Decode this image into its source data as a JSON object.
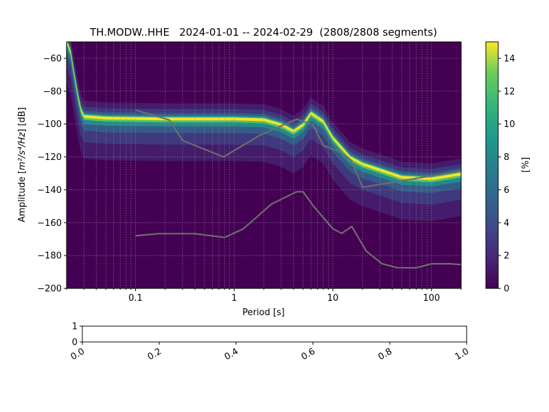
{
  "chart_data": [
    {
      "type": "heatmap",
      "title": "TH.MODW..HHE   2024-01-01 -- 2024-02-29  (2808/2808 segments)",
      "xlabel": "Period [s]",
      "ylabel_main": "Amplitude [",
      "ylabel_unit": "m²/s⁴/Hz",
      "ylabel_end": "] [dB]",
      "xscale": "log",
      "xlim": [
        0.02,
        200
      ],
      "ylim": [
        -200,
        -50
      ],
      "xticks": [
        0.1,
        1,
        10,
        100
      ],
      "xtick_labels": [
        "0.1",
        "1",
        "10",
        "100"
      ],
      "yticks": [
        -200,
        -180,
        -160,
        -140,
        -120,
        -100,
        -80,
        -60
      ],
      "ytick_labels": [
        "−200",
        "−180",
        "−160",
        "−140",
        "−120",
        "−100",
        "−80",
        "−60"
      ],
      "grid": true,
      "colorbar": {
        "label": "[%]",
        "range": [
          0,
          15
        ],
        "ticks": [
          0,
          2,
          4,
          6,
          8,
          10,
          12,
          14
        ],
        "tick_labels": [
          "0",
          "2",
          "4",
          "6",
          "8",
          "10",
          "12",
          "14"
        ],
        "colormap": "viridis"
      },
      "mode_ridge": [
        {
          "x": 0.02,
          "y": -49
        },
        {
          "x": 0.022,
          "y": -56
        },
        {
          "x": 0.024,
          "y": -70
        },
        {
          "x": 0.026,
          "y": -82
        },
        {
          "x": 0.028,
          "y": -91
        },
        {
          "x": 0.03,
          "y": -95
        },
        {
          "x": 0.05,
          "y": -96
        },
        {
          "x": 0.2,
          "y": -96.5
        },
        {
          "x": 0.5,
          "y": -96.5
        },
        {
          "x": 1,
          "y": -96.5
        },
        {
          "x": 2,
          "y": -97
        },
        {
          "x": 3,
          "y": -100
        },
        {
          "x": 4,
          "y": -104
        },
        {
          "x": 5,
          "y": -100
        },
        {
          "x": 6,
          "y": -93
        },
        {
          "x": 8,
          "y": -98
        },
        {
          "x": 10,
          "y": -108
        },
        {
          "x": 15,
          "y": -120
        },
        {
          "x": 20,
          "y": -124
        },
        {
          "x": 50,
          "y": -132
        },
        {
          "x": 100,
          "y": -133
        },
        {
          "x": 200,
          "y": -130
        }
      ],
      "series": [
        {
          "x": [
            0.1,
            0.22,
            0.3,
            0.78,
            1.8,
            4.3,
            6.3,
            8,
            12,
            15.4,
            20,
            200
          ],
          "y": [
            -91.5,
            -97.5,
            -110,
            -120,
            -107,
            -97,
            -100.5,
            -113,
            -117,
            -122,
            -138.5,
            -128.5
          ]
        },
        {
          "x": [
            0.1,
            0.17,
            0.4,
            0.8,
            1.24,
            2.4,
            4.3,
            5,
            6.3,
            10,
            12.3,
            15.6,
            21.9,
            31.6,
            45,
            70,
            101,
            154,
            200
          ],
          "y": [
            -168,
            -166.7,
            -166.7,
            -169,
            -163.7,
            -148.6,
            -141.2,
            -141.2,
            -149.6,
            -163.7,
            -166.5,
            -162.3,
            -177.4,
            -185,
            -187.4,
            -187.5,
            -185,
            -185,
            -185.5
          ]
        }
      ]
    },
    {
      "type": "line",
      "title": "",
      "xlim": [
        0,
        1
      ],
      "ylim": [
        0,
        1
      ],
      "xtick_labels": [
        "0.0",
        "0.2",
        "0.4",
        "0.6",
        "0.8",
        "1.0"
      ],
      "ytick_labels": [
        "0",
        "1"
      ]
    }
  ]
}
